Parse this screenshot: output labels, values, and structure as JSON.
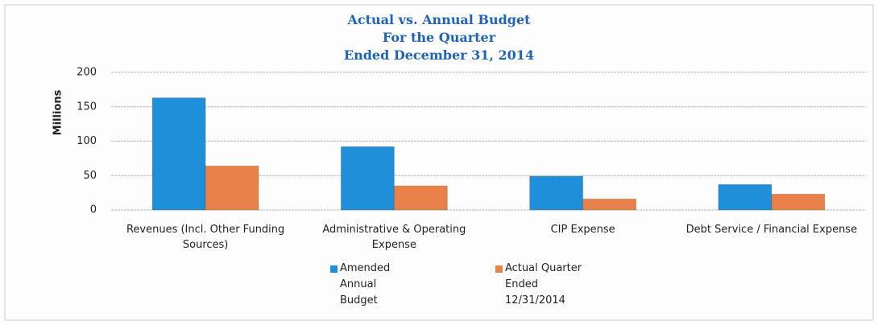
{
  "chart_data": {
    "type": "bar",
    "title": [
      "Actual vs. Annual Budget",
      "For the Quarter",
      "Ended December 31, 2014"
    ],
    "ylabel": "Millions",
    "categories": [
      "Revenues (Incl. Other Funding Sources)",
      "Administrative & Operating Expense",
      "CIP Expense",
      "Debt Service / Financial Expense"
    ],
    "series": [
      {
        "name": "Amended Annual Budget",
        "color": "#1e8fd8",
        "values": [
          163,
          92,
          49,
          37
        ]
      },
      {
        "name": "Actual Quarter Ended 12/31/2014",
        "color": "#e8824a",
        "values": [
          64,
          35,
          16,
          23
        ]
      }
    ],
    "ylim": [
      0,
      200
    ],
    "yticks": [
      0,
      50,
      100,
      150,
      200
    ],
    "grid": true
  }
}
